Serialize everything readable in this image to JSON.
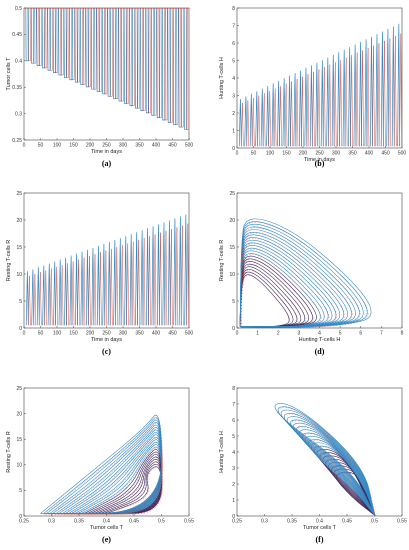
{
  "colors": {
    "blue": "#2f8ac8",
    "red": "#c0392b",
    "dark": "#3a2a60",
    "axis": "#444444",
    "grid": "#dddddd"
  },
  "chart_data": [
    {
      "id": "a",
      "label": "(a)",
      "type": "line",
      "xlabel": "Time in days",
      "ylabel": "Tumor cells T",
      "xlim": [
        0,
        500
      ],
      "ylim": [
        0.25,
        0.5
      ],
      "xticks": [
        0,
        50,
        100,
        150,
        200,
        250,
        300,
        350,
        400,
        450,
        500
      ],
      "yticks": [
        0.25,
        0.3,
        0.35,
        0.4,
        0.45,
        0.5
      ],
      "spikes": {
        "count": 30,
        "t_start": 10,
        "t_end": 490,
        "upper": 0.5,
        "lower_start": 0.4,
        "lower_end": 0.27
      }
    },
    {
      "id": "b",
      "label": "(b)",
      "type": "line",
      "xlabel": "Time in days",
      "ylabel": "Hunting T-cells H",
      "xlim": [
        0,
        500
      ],
      "ylim": [
        0,
        8
      ],
      "xticks": [
        0,
        50,
        100,
        150,
        200,
        250,
        300,
        350,
        400,
        450,
        500
      ],
      "yticks": [
        0,
        1,
        2,
        3,
        4,
        5,
        6,
        7,
        8
      ],
      "spikes": {
        "count": 30,
        "t_start": 10,
        "t_end": 490,
        "peak_start": 2.8,
        "peak_end": 7.1,
        "base": 0.1
      }
    },
    {
      "id": "c",
      "label": "(c)",
      "type": "line",
      "xlabel": "Time in days",
      "ylabel": "Resting T-cells R",
      "xlim": [
        0,
        500
      ],
      "ylim": [
        0,
        25
      ],
      "xticks": [
        0,
        50,
        100,
        150,
        200,
        250,
        300,
        350,
        400,
        450,
        500
      ],
      "yticks": [
        0,
        5,
        10,
        15,
        20,
        25
      ],
      "spikes": {
        "count": 30,
        "t_start": 10,
        "t_end": 490,
        "peak_start": 10.5,
        "peak_end": 21,
        "base": 0.5
      }
    },
    {
      "id": "d",
      "label": "(d)",
      "type": "line",
      "xlabel": "Hunting T-cells H",
      "ylabel": "Resting T-cells R",
      "xlim": [
        0,
        8
      ],
      "ylim": [
        0,
        25
      ],
      "xticks": [
        0,
        1,
        2,
        3,
        4,
        5,
        6,
        7,
        8
      ],
      "yticks": [
        0,
        5,
        10,
        15,
        20,
        25
      ],
      "orbits": {
        "count": 22,
        "h_max_start": 2.8,
        "h_max_end": 7.2,
        "r_max_start": 10.5,
        "r_max_end": 21.5
      }
    },
    {
      "id": "e",
      "label": "(e)",
      "type": "line",
      "xlabel": "Tumor cells T",
      "ylabel": "Resting T-cells R",
      "xlim": [
        0.25,
        0.55
      ],
      "ylim": [
        0,
        25
      ],
      "xticks": [
        0.25,
        0.3,
        0.35,
        0.4,
        0.45,
        0.5,
        0.55
      ],
      "yticks": [
        0,
        5,
        10,
        15,
        20,
        25
      ],
      "orbits": {
        "count": 22,
        "t_min_start": 0.4,
        "t_min_end": 0.28,
        "r_max_start": 10.5,
        "r_max_end": 21.5
      }
    },
    {
      "id": "f",
      "label": "(f)",
      "type": "line",
      "xlabel": "Tumor cells T",
      "ylabel": "Hunting T-cells H",
      "xlim": [
        0.25,
        0.55
      ],
      "ylim": [
        0,
        8
      ],
      "xticks": [
        0.25,
        0.3,
        0.35,
        0.4,
        0.45,
        0.5,
        0.55
      ],
      "yticks": [
        0,
        1,
        2,
        3,
        4,
        5,
        6,
        7,
        8
      ],
      "orbits": {
        "count": 22,
        "t_min_start": 0.4,
        "t_min_end": 0.28,
        "h_max_start": 2.8,
        "h_max_end": 7.2
      }
    }
  ]
}
